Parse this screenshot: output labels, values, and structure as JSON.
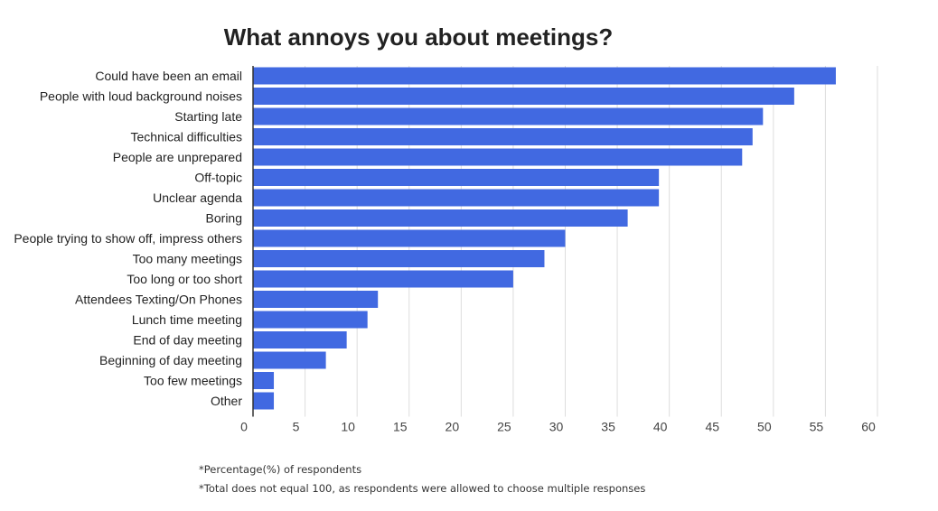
{
  "chart_data": {
    "type": "bar",
    "orientation": "horizontal",
    "title": "What annoys you about meetings?",
    "categories": [
      "Could have been an email",
      "People with loud background noises",
      "Starting late",
      "Technical difficulties",
      "People are unprepared",
      "Off-topic",
      "Unclear agenda",
      "Boring",
      "People trying to show off, impress others",
      "Too many meetings",
      "Too long or too short",
      "Attendees Texting/On Phones",
      "Lunch time meeting",
      "End of day meeting",
      "Beginning of day meeting",
      "Too few meetings",
      "Other"
    ],
    "values": [
      56,
      52,
      49,
      48,
      47,
      39,
      39,
      36,
      30,
      28,
      25,
      12,
      11,
      9,
      7,
      2,
      2
    ],
    "x_ticks": [
      "0",
      "5",
      "10",
      "15",
      "20",
      "25",
      "30",
      "35",
      "40",
      "45",
      "50",
      "55",
      "60"
    ],
    "xlim": [
      0,
      60
    ],
    "xlabel": "",
    "ylabel": "",
    "grid": true,
    "bar_color": "#4169e1",
    "grid_color": "#dddddd"
  },
  "footnotes": [
    "*Percentage(%) of respondents",
    "*Total does not equal 100, as respondents were allowed to choose multiple responses"
  ]
}
